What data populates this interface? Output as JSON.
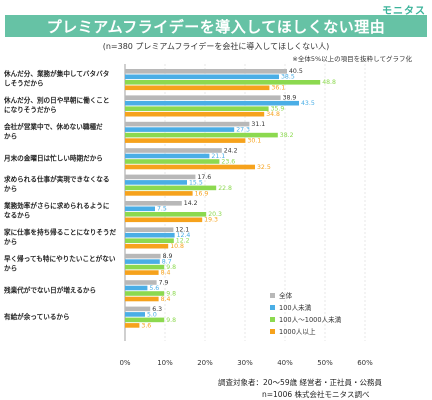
{
  "header": {
    "title": "プレミアムフライデーを導入してほしくない理由",
    "brand": "モニタス",
    "subtitle": "(n=380 プレミアムフライデーを会社に導入してほしくない人)",
    "note": "※全体5%以上の項目を抜粋してグラフ化"
  },
  "footer": {
    "line1": "調査対象者：20～59歳 経営者・正社員・公務員",
    "line2": "n=1006 株式会社モニタス調べ"
  },
  "colors": {
    "title_bg": "#66c2a5",
    "series": [
      "#b8b8b8",
      "#4aaee6",
      "#8cd94f",
      "#f6a21c"
    ]
  },
  "chart_data": {
    "type": "bar",
    "orientation": "horizontal",
    "categories": [
      [
        "休んだ分、業務が集中してバタバタ",
        "しそうだから"
      ],
      [
        "休んだ分、別の日や早朝に働くこと",
        "になりそうだから"
      ],
      [
        "会社が営業中で、休めない職種だ",
        "から"
      ],
      [
        "月末の金曜日は忙しい時期だから"
      ],
      [
        "求められる仕事が実現できなくなる",
        "から"
      ],
      [
        "業務効率がさらに求められるように",
        "なるから"
      ],
      [
        "家に仕事を持ち帰ることになりそうだ",
        "から"
      ],
      [
        "早く帰っても特にやりたいことがない",
        "から"
      ],
      [
        "残業代がでない日が増えるから"
      ],
      [
        "有給が余っているから"
      ]
    ],
    "series": [
      {
        "name": "全体",
        "values": [
          40.5,
          38.9,
          31.1,
          24.2,
          17.6,
          14.2,
          12.1,
          8.9,
          7.9,
          6.3
        ]
      },
      {
        "name": "100人未満",
        "values": [
          38.5,
          43.5,
          27.3,
          21.1,
          15.5,
          7.5,
          12.4,
          8.7,
          5.6,
          5.0
        ]
      },
      {
        "name": "100人～1000人未満",
        "values": [
          48.8,
          35.9,
          38.2,
          23.6,
          22.8,
          20.3,
          12.2,
          9.8,
          9.8,
          9.8
        ]
      },
      {
        "name": "1000人以上",
        "values": [
          36.1,
          34.8,
          30.1,
          32.5,
          16.9,
          19.3,
          10.8,
          8.4,
          8.4,
          3.6
        ]
      }
    ],
    "xlim": [
      0,
      60
    ],
    "xticks": [
      "0%",
      "10%",
      "20%",
      "30%",
      "40%",
      "50%",
      "60%"
    ],
    "legend_position": "bottom-right",
    "grid": true
  }
}
